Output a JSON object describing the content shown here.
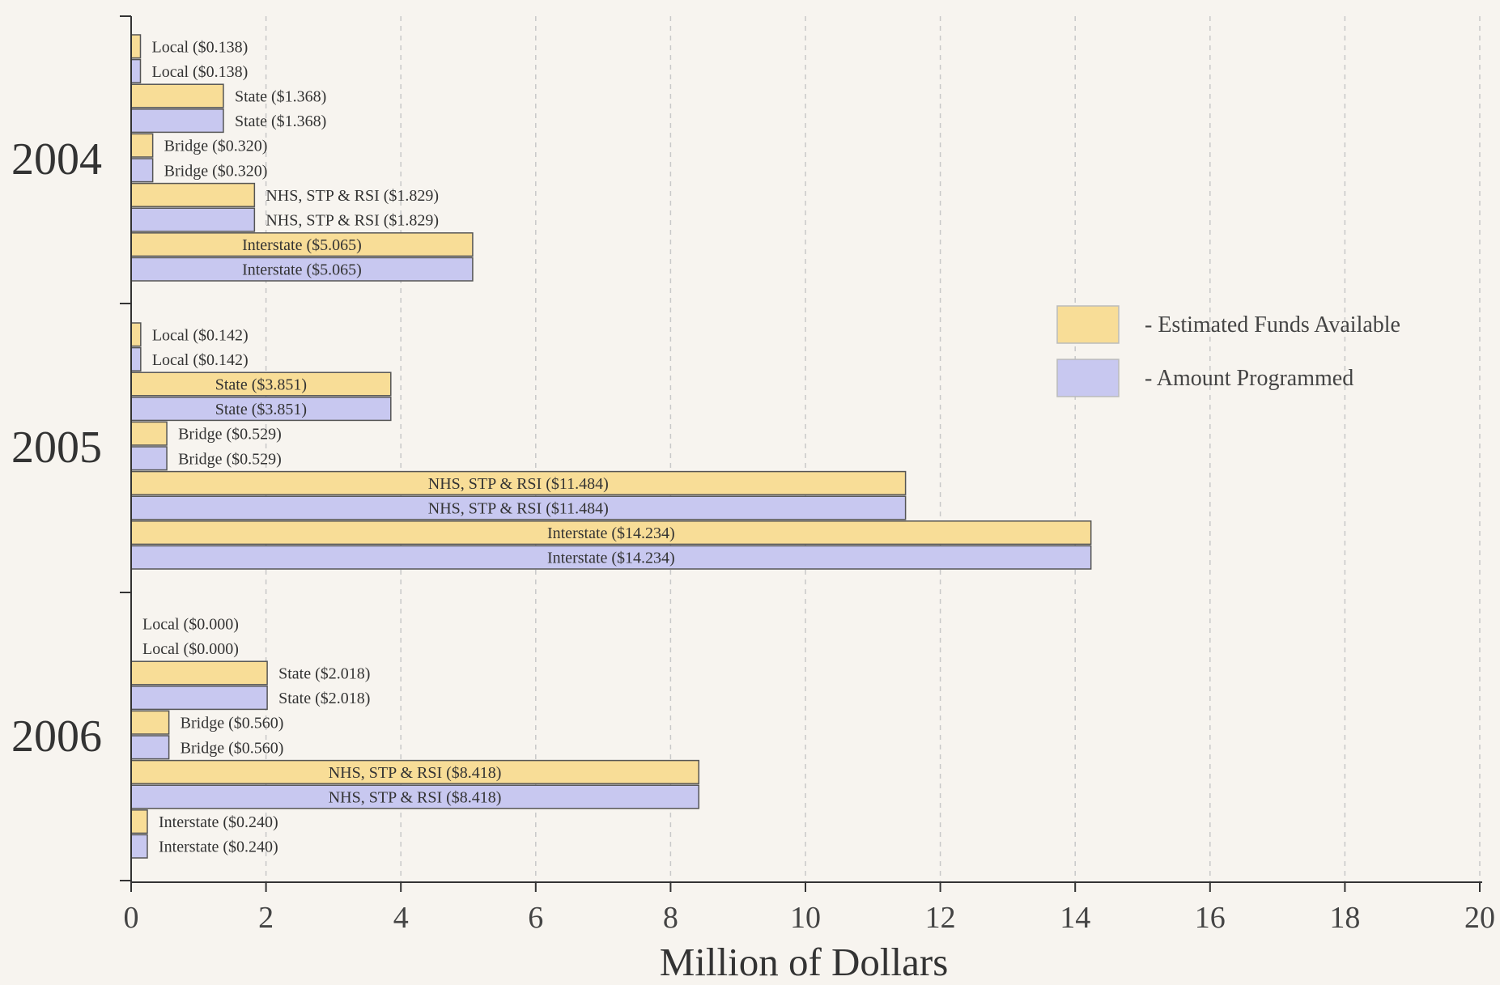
{
  "chart_data": {
    "type": "bar",
    "orientation": "horizontal",
    "xlabel": "Million of Dollars",
    "xlim": [
      0,
      20
    ],
    "xticks": [
      0,
      2,
      4,
      6,
      8,
      10,
      12,
      14,
      16,
      18,
      20
    ],
    "grid": true,
    "legend_position": "top-right",
    "colors": {
      "estimated": "#f8dd97",
      "programmed": "#c8c8f0",
      "outline": "#555555",
      "grid": "#c8c8c8"
    },
    "series": [
      {
        "key": "estimated",
        "name": "- Estimated Funds Available"
      },
      {
        "key": "programmed",
        "name": "- Amount Programmed"
      }
    ],
    "groups": [
      {
        "label": "2004",
        "bars": [
          {
            "series": "estimated",
            "value": 0.138,
            "label": "Local ($0.138)"
          },
          {
            "series": "programmed",
            "value": 0.138,
            "label": "Local ($0.138)"
          },
          {
            "series": "estimated",
            "value": 1.368,
            "label": "State ($1.368)"
          },
          {
            "series": "programmed",
            "value": 1.368,
            "label": "State ($1.368)"
          },
          {
            "series": "estimated",
            "value": 0.32,
            "label": "Bridge ($0.320)"
          },
          {
            "series": "programmed",
            "value": 0.32,
            "label": "Bridge ($0.320)"
          },
          {
            "series": "estimated",
            "value": 1.829,
            "label": "NHS, STP & RSI ($1.829)"
          },
          {
            "series": "programmed",
            "value": 1.829,
            "label": "NHS, STP & RSI ($1.829)"
          },
          {
            "series": "estimated",
            "value": 5.065,
            "label": "Interstate ($5.065)"
          },
          {
            "series": "programmed",
            "value": 5.065,
            "label": "Interstate ($5.065)"
          }
        ]
      },
      {
        "label": "2005",
        "bars": [
          {
            "series": "estimated",
            "value": 0.142,
            "label": "Local ($0.142)"
          },
          {
            "series": "programmed",
            "value": 0.142,
            "label": "Local ($0.142)"
          },
          {
            "series": "estimated",
            "value": 3.851,
            "label": "State ($3.851)"
          },
          {
            "series": "programmed",
            "value": 3.851,
            "label": "State ($3.851)"
          },
          {
            "series": "estimated",
            "value": 0.529,
            "label": "Bridge ($0.529)"
          },
          {
            "series": "programmed",
            "value": 0.529,
            "label": "Bridge ($0.529)"
          },
          {
            "series": "estimated",
            "value": 11.484,
            "label": "NHS, STP & RSI ($11.484)"
          },
          {
            "series": "programmed",
            "value": 11.484,
            "label": "NHS, STP & RSI ($11.484)"
          },
          {
            "series": "estimated",
            "value": 14.234,
            "label": "Interstate ($14.234)"
          },
          {
            "series": "programmed",
            "value": 14.234,
            "label": "Interstate ($14.234)"
          }
        ]
      },
      {
        "label": "2006",
        "bars": [
          {
            "series": "estimated",
            "value": 0.0,
            "label": "Local ($0.000)"
          },
          {
            "series": "programmed",
            "value": 0.0,
            "label": "Local ($0.000)"
          },
          {
            "series": "estimated",
            "value": 2.018,
            "label": "State ($2.018)"
          },
          {
            "series": "programmed",
            "value": 2.018,
            "label": "State ($2.018)"
          },
          {
            "series": "estimated",
            "value": 0.56,
            "label": "Bridge ($0.560)"
          },
          {
            "series": "programmed",
            "value": 0.56,
            "label": "Bridge ($0.560)"
          },
          {
            "series": "estimated",
            "value": 8.418,
            "label": "NHS, STP & RSI ($8.418)"
          },
          {
            "series": "programmed",
            "value": 8.418,
            "label": "NHS, STP & RSI ($8.418)"
          },
          {
            "series": "estimated",
            "value": 0.24,
            "label": "Interstate ($0.240)"
          },
          {
            "series": "programmed",
            "value": 0.24,
            "label": "Interstate ($0.240)"
          }
        ]
      }
    ]
  }
}
